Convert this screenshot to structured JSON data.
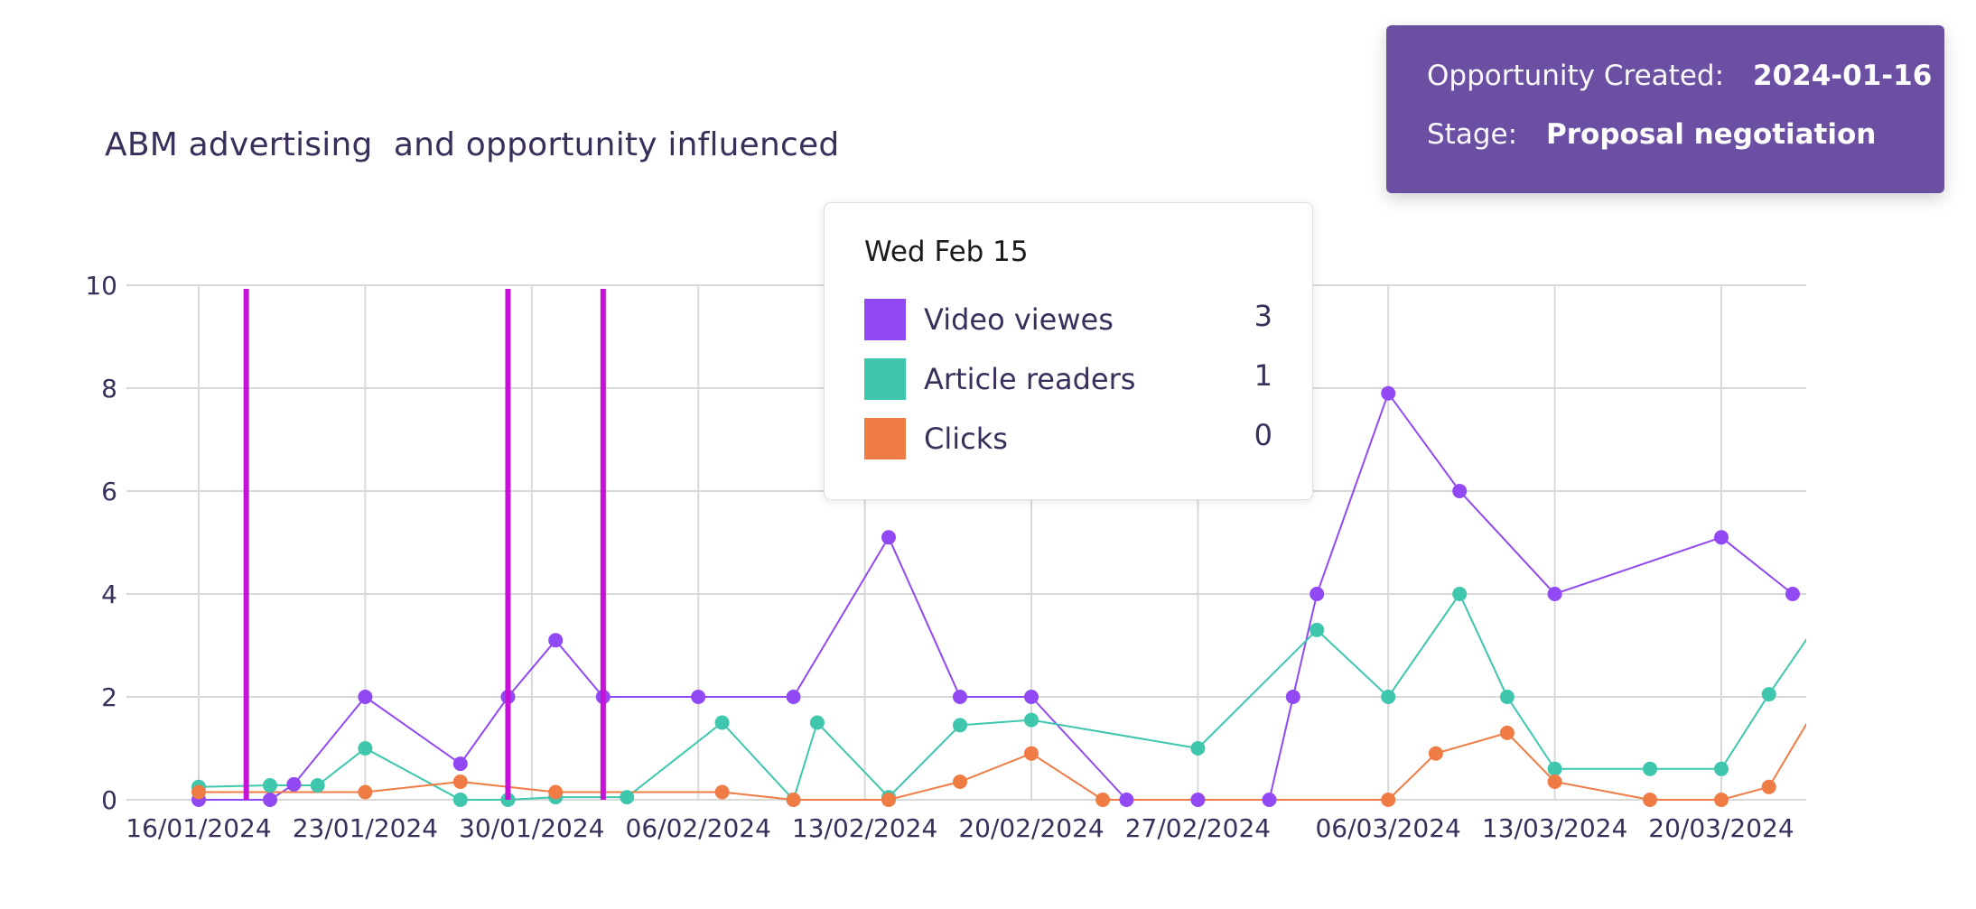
{
  "opportunity": {
    "created_label": "Opportunity Created:",
    "created_value": "2024-01-16",
    "stage_label": "Stage:",
    "stage_value": "Proposal negotiation",
    "card_color": "#6a4fa3"
  },
  "tooltip": {
    "date": "Wed Feb 15",
    "rows": [
      {
        "label": "Video viewes",
        "value": "3",
        "color": "#9149f3"
      },
      {
        "label": "Article readers",
        "value": "1",
        "color": "#3fc7ae"
      },
      {
        "label": "Clicks",
        "value": "0",
        "color": "#ef7c45"
      }
    ]
  },
  "chart_data": {
    "type": "line",
    "title": "ABM advertising  and opportunity influenced",
    "xlabel": "",
    "ylabel": "",
    "x_axis": {
      "type": "date",
      "start": "2024-01-16",
      "end": "2024-03-23",
      "ticks": [
        "2024-01-16",
        "2024-01-23",
        "2024-01-30",
        "2024-02-06",
        "2024-02-13",
        "2024-02-20",
        "2024-02-27",
        "2024-03-06",
        "2024-03-13",
        "2024-03-20"
      ],
      "tick_labels": [
        "16/01/2024",
        "23/01/2024",
        "30/01/2024",
        "06/02/2024",
        "13/02/2024",
        "20/02/2024",
        "27/02/2024",
        "06/03/2024",
        "13/03/2024",
        "20/03/2024"
      ]
    },
    "y_axis": {
      "min": 0,
      "max": 10,
      "ticks": [
        0,
        2,
        4,
        6,
        8,
        10
      ]
    },
    "grid": true,
    "series": [
      {
        "name": "Video viewes",
        "color": "#9149f3",
        "points": [
          [
            "2024-01-16",
            0
          ],
          [
            "2024-01-19",
            0
          ],
          [
            "2024-01-20",
            0.3
          ],
          [
            "2024-01-23",
            2
          ],
          [
            "2024-01-27",
            0.7
          ],
          [
            "2024-01-29",
            2
          ],
          [
            "2024-01-31",
            3.1
          ],
          [
            "2024-02-02",
            2
          ],
          [
            "2024-02-06",
            2
          ],
          [
            "2024-02-10",
            2
          ],
          [
            "2024-02-14",
            5.1
          ],
          [
            "2024-02-17",
            2
          ],
          [
            "2024-02-20",
            2
          ],
          [
            "2024-02-24",
            0
          ],
          [
            "2024-02-27",
            0
          ],
          [
            "2024-03-01",
            0
          ],
          [
            "2024-03-02",
            2
          ],
          [
            "2024-03-03",
            4
          ],
          [
            "2024-03-06",
            7.9
          ],
          [
            "2024-03-09",
            6
          ],
          [
            "2024-03-13",
            4
          ],
          [
            "2024-03-20",
            5.1
          ],
          [
            "2024-03-23",
            4
          ]
        ]
      },
      {
        "name": "Article readers",
        "color": "#3fc7ae",
        "points": [
          [
            "2024-01-16",
            0.25
          ],
          [
            "2024-01-19",
            0.28
          ],
          [
            "2024-01-21",
            0.28
          ],
          [
            "2024-01-23",
            1
          ],
          [
            "2024-01-27",
            0
          ],
          [
            "2024-01-29",
            0
          ],
          [
            "2024-01-31",
            0.05
          ],
          [
            "2024-02-03",
            0.05
          ],
          [
            "2024-02-07",
            1.5
          ],
          [
            "2024-02-10",
            0
          ],
          [
            "2024-02-11",
            1.5
          ],
          [
            "2024-02-14",
            0.05
          ],
          [
            "2024-02-17",
            1.45
          ],
          [
            "2024-02-20",
            1.55
          ],
          [
            "2024-02-27",
            1
          ],
          [
            "2024-03-03",
            3.3
          ],
          [
            "2024-03-06",
            2
          ],
          [
            "2024-03-09",
            4
          ],
          [
            "2024-03-11",
            2
          ],
          [
            "2024-03-13",
            0.6
          ],
          [
            "2024-03-17",
            0.6
          ],
          [
            "2024-03-20",
            0.6
          ],
          [
            "2024-03-22",
            2.05
          ],
          [
            "2024-03-24",
            3.4
          ]
        ]
      },
      {
        "name": "Clicks",
        "color": "#ef7c45",
        "points": [
          [
            "2024-01-16",
            0.15
          ],
          [
            "2024-01-23",
            0.15
          ],
          [
            "2024-01-27",
            0.35
          ],
          [
            "2024-01-31",
            0.15
          ],
          [
            "2024-02-07",
            0.15
          ],
          [
            "2024-02-10",
            0
          ],
          [
            "2024-02-14",
            0
          ],
          [
            "2024-02-17",
            0.35
          ],
          [
            "2024-02-20",
            0.9
          ],
          [
            "2024-02-23",
            0
          ],
          [
            "2024-03-06",
            0
          ],
          [
            "2024-03-08",
            0.9
          ],
          [
            "2024-03-11",
            1.3
          ],
          [
            "2024-03-13",
            0.35
          ],
          [
            "2024-03-17",
            0
          ],
          [
            "2024-03-20",
            0
          ],
          [
            "2024-03-22",
            0.25
          ],
          [
            "2024-03-24",
            1.8
          ]
        ]
      }
    ],
    "markers": {
      "color": "#c513d6",
      "dates": [
        "2024-01-18",
        "2024-01-29",
        "2024-02-02"
      ]
    }
  }
}
